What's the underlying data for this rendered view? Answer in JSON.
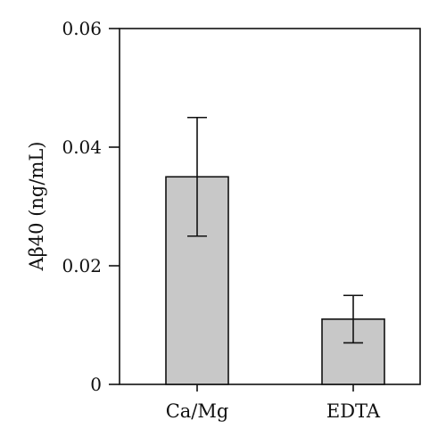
{
  "chart_data": {
    "type": "bar",
    "title": "",
    "xlabel": "",
    "ylabel": "Aβ40 (ng/mL)",
    "categories": [
      "Ca/Mg",
      "EDTA"
    ],
    "values": [
      0.035,
      0.011
    ],
    "error": [
      0.01,
      0.004
    ],
    "ylim": [
      0,
      0.06
    ],
    "yticks": [
      0,
      0.02,
      0.04,
      0.06
    ],
    "ytick_labels": [
      "0",
      "0.02",
      "0.04",
      "0.06"
    ],
    "grid": false,
    "legend": "none",
    "colors": {
      "bar_fill": "#c8c8c8",
      "bar_stroke": "#111111",
      "axis": "#111111"
    }
  }
}
